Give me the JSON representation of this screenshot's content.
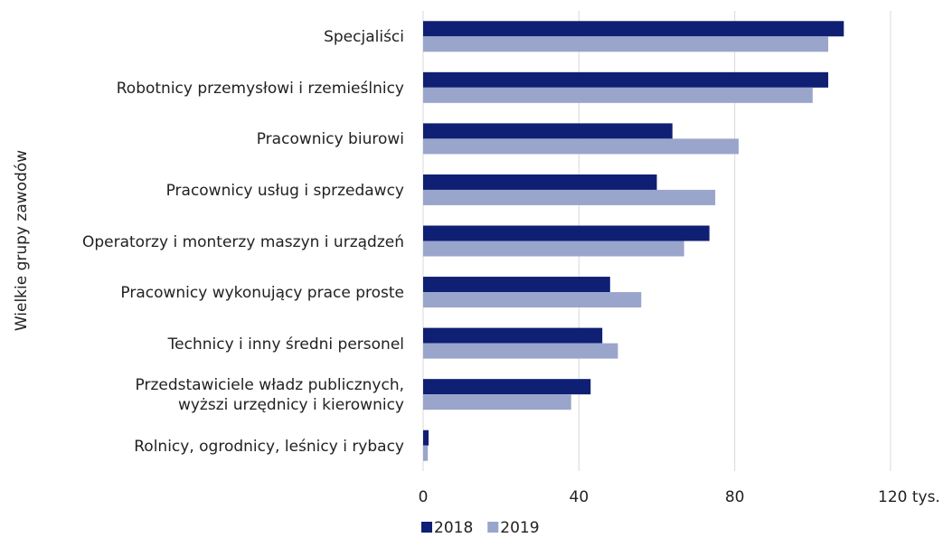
{
  "chart_data": {
    "type": "hbar",
    "ylabel": "Wielkie grupy zawodów",
    "categories": [
      "Specjaliści",
      "Robotnicy przemysłowi i rzemieślnicy",
      "Pracownicy biurowi",
      "Pracownicy usług i sprzedawcy",
      "Operatorzy i monterzy maszyn i urządzeń",
      "Pracownicy wykonujący prace proste",
      "Technicy i inny średni personel",
      "Przedstawiciele władz publicznych,\nwyższi urzędnicy i kierownicy",
      "Rolnicy, ogrodnicy, leśnicy i rybacy"
    ],
    "series": [
      {
        "name": "2018",
        "color": "#0f1f73",
        "values": [
          108,
          104,
          64,
          60,
          73.5,
          48,
          46,
          43,
          1.4
        ]
      },
      {
        "name": "2019",
        "color": "#9aa5cc",
        "values": [
          104,
          100,
          81,
          75,
          67,
          56,
          50,
          38,
          1.2
        ]
      }
    ],
    "xlim": [
      0,
      120
    ],
    "xticks": [
      0,
      40,
      80,
      {
        "value": 120,
        "label": "120 tys."
      }
    ],
    "grid": true,
    "legend": "bottom"
  }
}
